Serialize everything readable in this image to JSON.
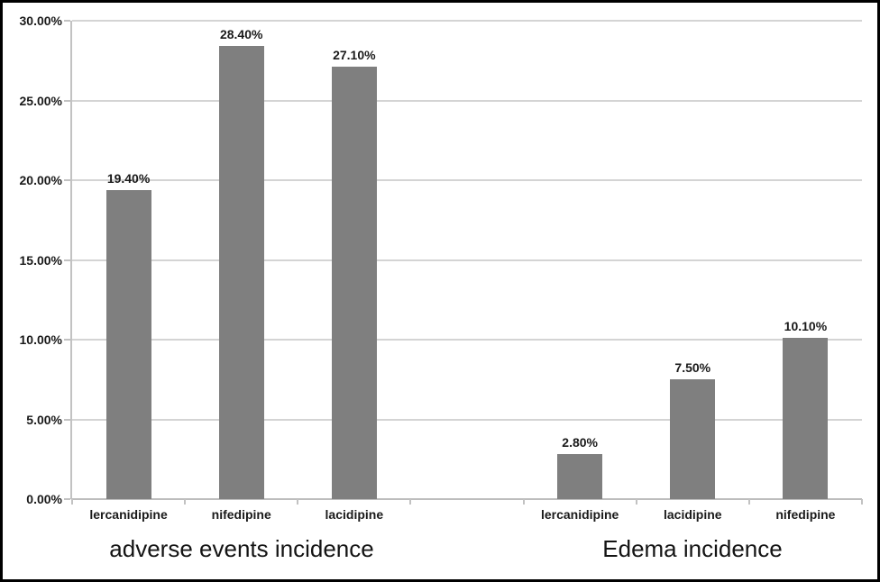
{
  "chart_data": {
    "type": "bar",
    "title": "",
    "xlabel": "",
    "ylabel": "",
    "ylim": [
      0,
      30
    ],
    "ytick_step": 5,
    "ytick_labels": [
      "0.00%",
      "5.00%",
      "10.00%",
      "15.00%",
      "20.00%",
      "25.00%",
      "30.00%"
    ],
    "grid": true,
    "legend": "none",
    "bar_color": "#7f7f7f",
    "gridline_color": "#d4d4d4",
    "axis_color": "#c2c2c2",
    "text_color": "#1a1a1a",
    "gap_slots_between_groups": 1,
    "groups": [
      {
        "label": "adverse events incidence",
        "categories": [
          "lercanidipine",
          "nifedipine",
          "lacidipine"
        ],
        "values": [
          19.4,
          28.4,
          27.1
        ],
        "value_labels": [
          "19.40%",
          "28.40%",
          "27.10%"
        ]
      },
      {
        "label": "Edema incidence",
        "categories": [
          "lercanidipine",
          "lacidipine",
          "nifedipine"
        ],
        "values": [
          2.8,
          7.5,
          10.1
        ],
        "value_labels": [
          "2.80%",
          "7.50%",
          "10.10%"
        ]
      }
    ]
  }
}
